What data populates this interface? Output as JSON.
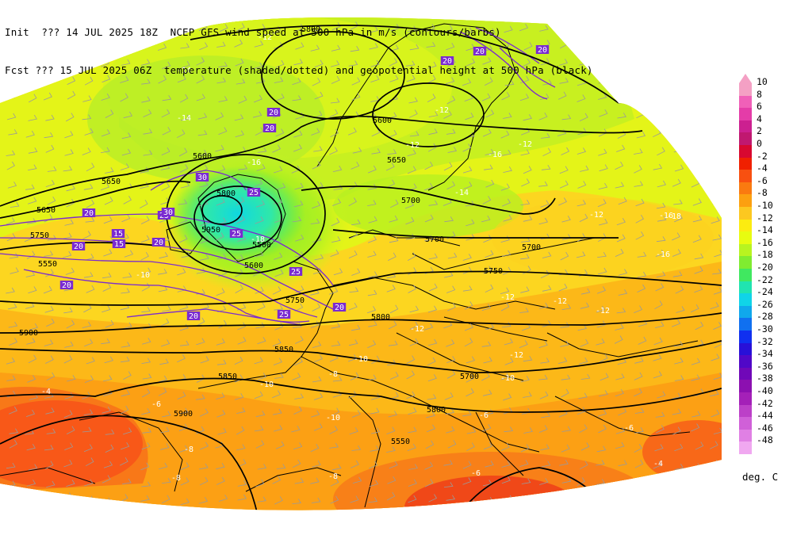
{
  "header": {
    "line1": "Init  ??? 14 JUL 2025 18Z  NCEP GFS wind speed at 500 hPa in m/s (contours/barbs)",
    "line2": "Fcst ??? 15 JUL 2025 06Z  temperature (shaded/dotted) and geopotential height at 500 hPa (black)"
  },
  "legend": {
    "units": "deg. C",
    "entries": [
      {
        "label": "10",
        "color": "#f4a0c4"
      },
      {
        "label": "8",
        "color": "#f060b8"
      },
      {
        "label": "6",
        "color": "#e43ca8"
      },
      {
        "label": "4",
        "color": "#cc2090"
      },
      {
        "label": "2",
        "color": "#c01870"
      },
      {
        "label": "0",
        "color": "#d80830"
      },
      {
        "label": "-2",
        "color": "#f02000"
      },
      {
        "label": "-4",
        "color": "#f85010"
      },
      {
        "label": "-6",
        "color": "#fa7a10"
      },
      {
        "label": "-8",
        "color": "#fca010"
      },
      {
        "label": "-10",
        "color": "#fcc820"
      },
      {
        "label": "-12",
        "color": "#fcec10"
      },
      {
        "label": "-14",
        "color": "#e8fc10"
      },
      {
        "label": "-16",
        "color": "#b8f420"
      },
      {
        "label": "-18",
        "color": "#80ec30"
      },
      {
        "label": "-20",
        "color": "#40e860"
      },
      {
        "label": "-22",
        "color": "#20e4b0"
      },
      {
        "label": "-24",
        "color": "#10d4e8"
      },
      {
        "label": "-26",
        "color": "#10a8ec"
      },
      {
        "label": "-28",
        "color": "#1070f0"
      },
      {
        "label": "-30",
        "color": "#1030f0"
      },
      {
        "label": "-32",
        "color": "#2810d8"
      },
      {
        "label": "-34",
        "color": "#5008c8"
      },
      {
        "label": "-36",
        "color": "#7008b8"
      },
      {
        "label": "-38",
        "color": "#8c10b0"
      },
      {
        "label": "-40",
        "color": "#a420b8"
      },
      {
        "label": "-42",
        "color": "#bc40c8"
      },
      {
        "label": "-44",
        "color": "#d060d8"
      },
      {
        "label": "-46",
        "color": "#e080e4"
      },
      {
        "label": "-48",
        "color": "#f0a8f0"
      }
    ]
  },
  "map_labels": {
    "height": [
      "5800",
      "5600",
      "5650",
      "5700",
      "5650",
      "5600",
      "5700",
      "5750",
      "5700",
      "5750",
      "5800",
      "5850",
      "5900",
      "5850",
      "5900",
      "5950",
      "5800",
      "5600",
      "5550",
      "5650",
      "5700",
      "5750",
      "5800",
      "5550",
      "5500"
    ],
    "temperature": [
      "-12",
      "-14",
      "-14",
      "-16",
      "-18",
      "-12",
      "-12",
      "-12",
      "-10",
      "-12",
      "-12",
      "-14",
      "-16",
      "-12",
      "-12",
      "-12",
      "-10",
      "-10",
      "-10",
      "-8",
      "-8",
      "-6",
      "-6",
      "-4",
      "-4",
      "-6",
      "-8",
      "-16",
      "-16",
      "-18",
      "-12",
      "-10",
      "-8",
      "-6"
    ],
    "wind": [
      "20",
      "20",
      "20",
      "15",
      "25",
      "30",
      "30",
      "25",
      "25",
      "20",
      "20",
      "20",
      "20",
      "20",
      "15",
      "25",
      "20",
      "20",
      "20",
      "25"
    ]
  }
}
